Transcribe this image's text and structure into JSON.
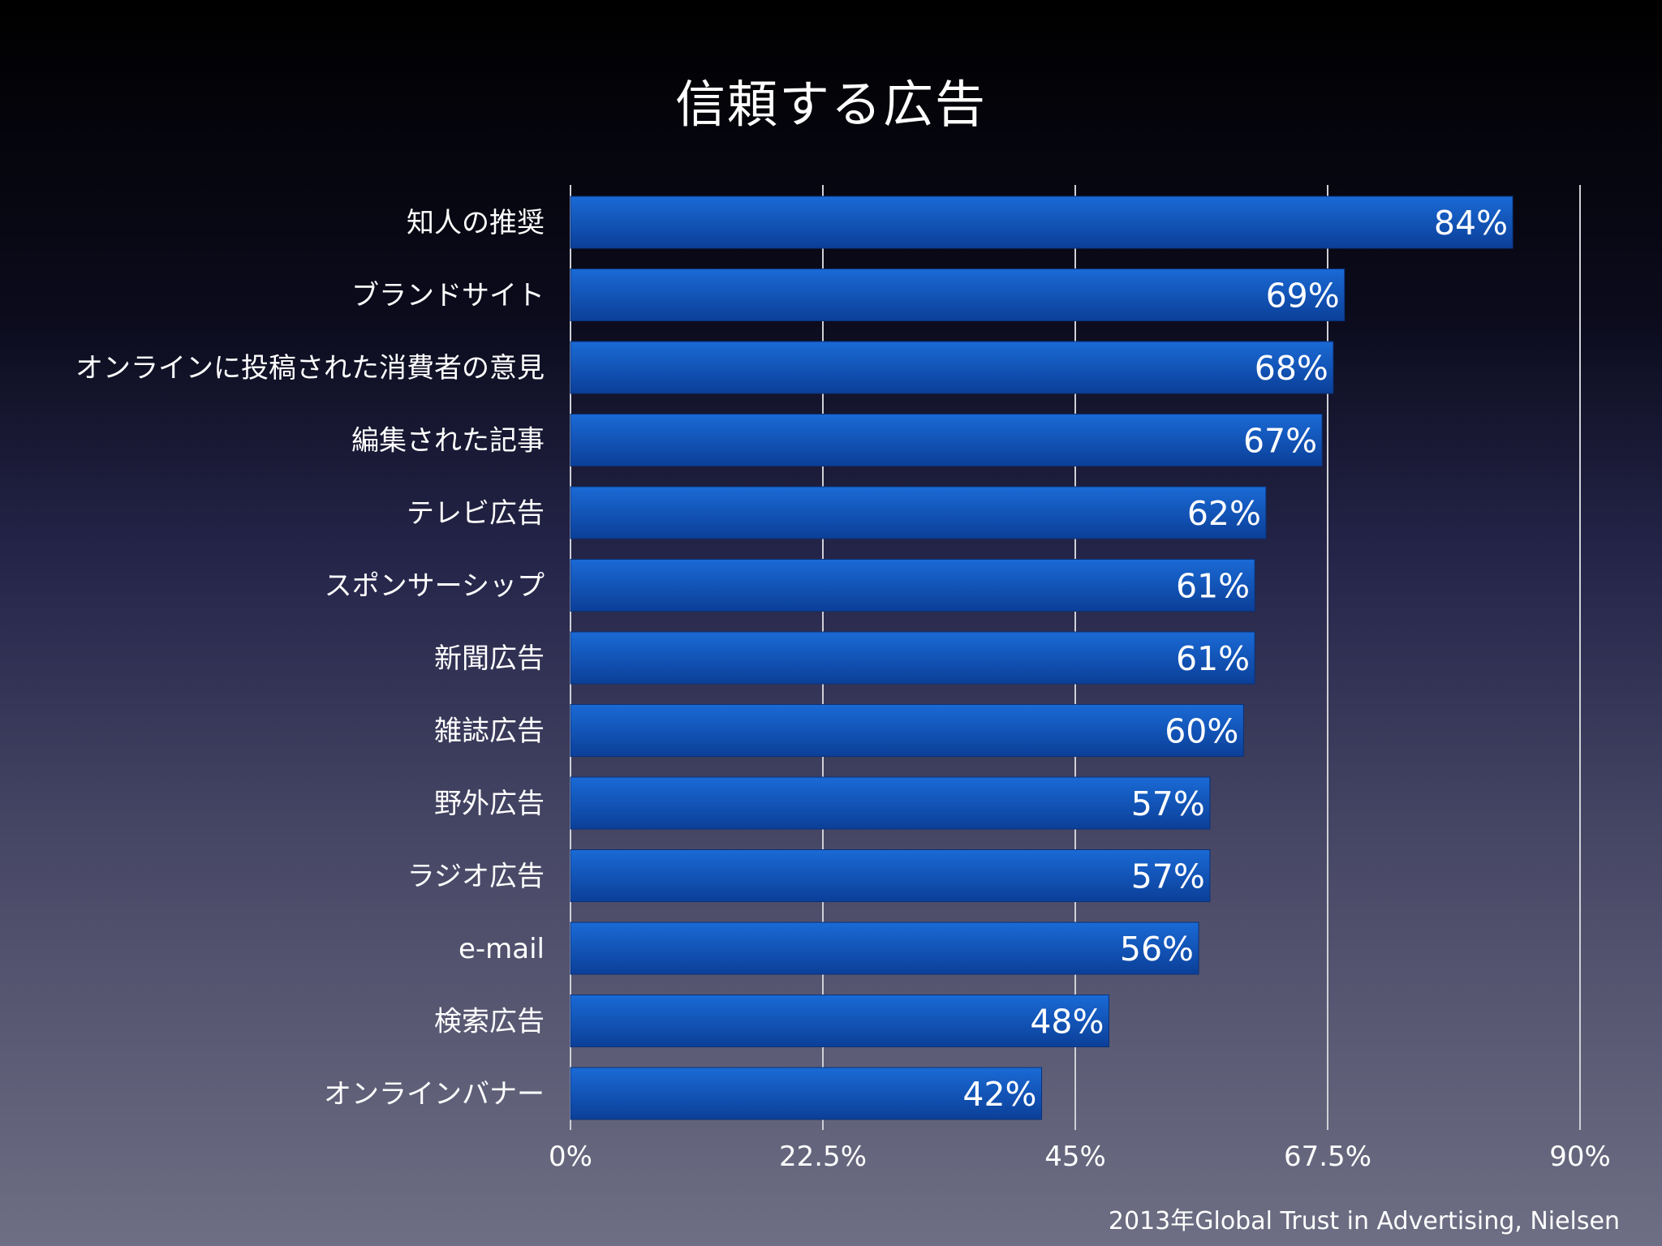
{
  "title": "信頼する広告",
  "source": "2013年Global Trust in Advertising, Nielsen",
  "colors": {
    "bar_top": "#1a6ad6",
    "bar_bottom": "#0b3f98",
    "gridline": "#cfcfd6",
    "text": "#ffffff"
  },
  "chart_data": {
    "type": "bar",
    "orientation": "horizontal",
    "title": "信頼する広告",
    "categories": [
      "知人の推奨",
      "ブランドサイト",
      "オンラインに投稿された消費者の意見",
      "編集された記事",
      "テレビ広告",
      "スポンサーシップ",
      "新聞広告",
      "雑誌広告",
      "野外広告",
      "ラジオ広告",
      "e-mail",
      "検索広告",
      "オンラインバナー"
    ],
    "values": [
      84,
      69,
      68,
      67,
      62,
      61,
      61,
      60,
      57,
      57,
      56,
      48,
      42
    ],
    "value_labels": [
      "84%",
      "69%",
      "68%",
      "67%",
      "62%",
      "61%",
      "61%",
      "60%",
      "57%",
      "57%",
      "56%",
      "48%",
      "42%"
    ],
    "xlim": [
      0,
      90
    ],
    "x_ticks": [
      0,
      22.5,
      45,
      67.5,
      90
    ],
    "x_tick_labels": [
      "0%",
      "22.5%",
      "45%",
      "67.5%",
      "90%"
    ],
    "grid": true,
    "legend": "none"
  }
}
